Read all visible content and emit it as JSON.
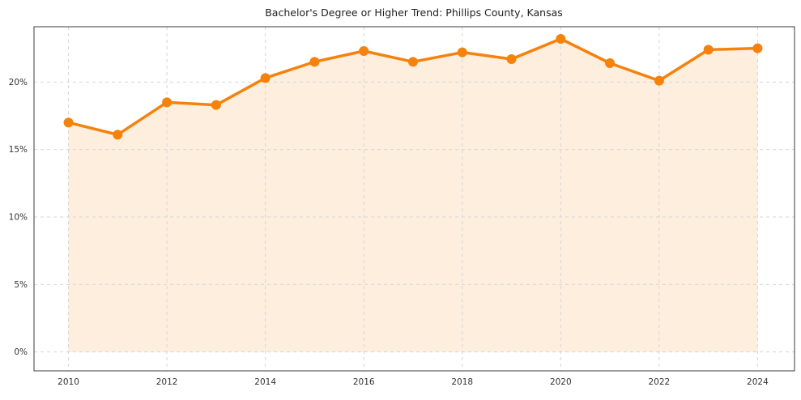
{
  "chart_data": {
    "type": "line",
    "title": "Bachelor's Degree or Higher Trend: Phillips County, Kansas",
    "xlabel": "",
    "ylabel": "",
    "x": [
      2010,
      2011,
      2012,
      2013,
      2014,
      2015,
      2016,
      2017,
      2018,
      2019,
      2020,
      2021,
      2022,
      2023,
      2024
    ],
    "values": [
      17.0,
      16.1,
      18.5,
      18.3,
      20.3,
      21.5,
      22.3,
      21.5,
      22.2,
      21.7,
      23.2,
      21.4,
      20.1,
      22.4,
      22.5
    ],
    "unit": "%",
    "xticks": [
      2010,
      2012,
      2014,
      2016,
      2018,
      2020,
      2022,
      2024
    ],
    "yticks": [
      0,
      5,
      10,
      15,
      20
    ],
    "ytick_labels": [
      "0%",
      "5%",
      "10%",
      "15%",
      "20%"
    ],
    "xlim": [
      2009.3,
      2024.75
    ],
    "ylim": [
      -1.4,
      24.1
    ],
    "grid": true,
    "grid_style": "dashed",
    "legend": "none",
    "area_fill_to": 0,
    "colors": {
      "line": "#f5820d",
      "marker": "#f5820d",
      "fill": "#fdeedd",
      "grid": "#d6d6d6",
      "spine": "#3b3b3b",
      "tick_text": "#333333",
      "title_text": "#1f1f1f",
      "background": "#ffffff"
    }
  }
}
